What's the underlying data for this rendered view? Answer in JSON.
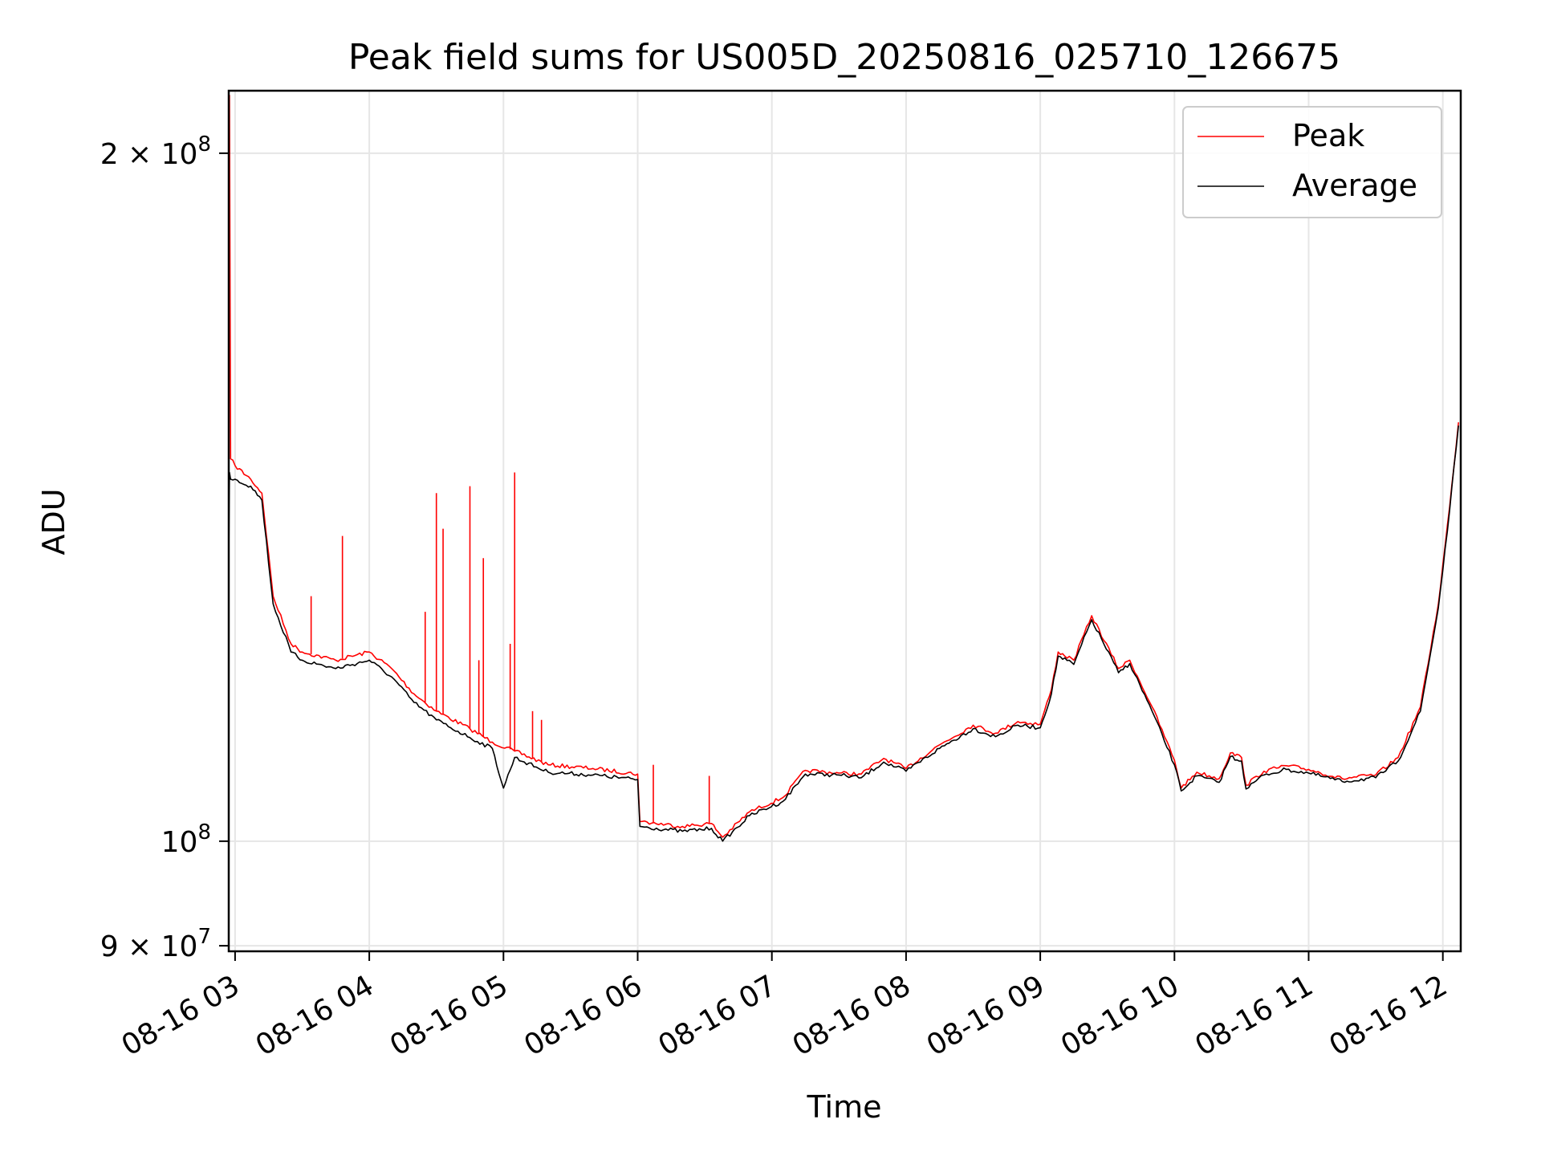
{
  "chart_data": {
    "type": "line",
    "title": "Peak field sums for US005D_20250816_025710_126675",
    "xlabel": "Time",
    "ylabel": "ADU",
    "y_scale": "log",
    "ylim": [
      89500000,
      213000000
    ],
    "xlim": [
      "2025-08-16 02:57:10",
      "2025-08-16 12:08:00"
    ],
    "grid": true,
    "legend_position": "top-right",
    "x_ticks": [
      {
        "t": "2025-08-16 03:00",
        "label": "08-16 03"
      },
      {
        "t": "2025-08-16 04:00",
        "label": "08-16 04"
      },
      {
        "t": "2025-08-16 05:00",
        "label": "08-16 05"
      },
      {
        "t": "2025-08-16 06:00",
        "label": "08-16 06"
      },
      {
        "t": "2025-08-16 07:00",
        "label": "08-16 07"
      },
      {
        "t": "2025-08-16 08:00",
        "label": "08-16 08"
      },
      {
        "t": "2025-08-16 09:00",
        "label": "08-16 09"
      },
      {
        "t": "2025-08-16 10:00",
        "label": "08-16 10"
      },
      {
        "t": "2025-08-16 11:00",
        "label": "08-16 11"
      },
      {
        "t": "2025-08-16 12:00",
        "label": "08-16 12"
      }
    ],
    "y_ticks": [
      {
        "v": 200000000,
        "mantissa": "2",
        "exp": "8"
      },
      {
        "v": 100000000,
        "mantissa": "",
        "exp": "8"
      },
      {
        "v": 90000000,
        "mantissa": "9",
        "exp": "7"
      }
    ],
    "series": [
      {
        "name": "Peak",
        "color": "#ff0000",
        "points": [
          [
            "2025-08-16 02:57:10",
            135000000
          ],
          [
            "2025-08-16 02:57:30",
            212000000
          ],
          [
            "2025-08-16 02:58:00",
            147000000
          ],
          [
            "2025-08-16 03:00",
            146000000
          ],
          [
            "2025-08-16 03:07",
            144000000
          ],
          [
            "2025-08-16 03:12",
            142000000
          ],
          [
            "2025-08-16 03:17",
            128000000
          ],
          [
            "2025-08-16 03:25",
            122000000
          ],
          [
            "2025-08-16 03:30",
            121000000
          ],
          [
            "2025-08-16 03:45",
            120000000
          ],
          [
            "2025-08-16 04:00",
            121000000
          ],
          [
            "2025-08-16 04:10",
            119000000
          ],
          [
            "2025-08-16 04:20",
            116000000
          ],
          [
            "2025-08-16 04:30",
            114000000
          ],
          [
            "2025-08-16 04:45",
            112000000
          ],
          [
            "2025-08-16 04:55",
            110500000
          ],
          [
            "2025-08-16 05:05",
            109500000
          ],
          [
            "2025-08-16 05:20",
            108000000
          ],
          [
            "2025-08-16 05:40",
            107600000
          ],
          [
            "2025-08-16 06:00",
            107000000
          ],
          [
            "2025-08-16 06:01",
            102000000
          ],
          [
            "2025-08-16 06:20",
            101500000
          ],
          [
            "2025-08-16 06:33",
            101800000
          ],
          [
            "2025-08-16 06:38",
            100400000
          ],
          [
            "2025-08-16 06:50",
            103000000
          ],
          [
            "2025-08-16 07:05",
            104500000
          ],
          [
            "2025-08-16 07:15",
            107400000
          ],
          [
            "2025-08-16 07:30",
            107100000
          ],
          [
            "2025-08-16 07:40",
            107000000
          ],
          [
            "2025-08-16 07:50",
            108700000
          ],
          [
            "2025-08-16 08:00",
            107600000
          ],
          [
            "2025-08-16 08:15",
            110200000
          ],
          [
            "2025-08-16 08:30",
            112400000
          ],
          [
            "2025-08-16 08:40",
            111500000
          ],
          [
            "2025-08-16 08:50",
            112800000
          ],
          [
            "2025-08-16 09:00",
            112500000
          ],
          [
            "2025-08-16 09:05",
            116500000
          ],
          [
            "2025-08-16 09:08",
            121000000
          ],
          [
            "2025-08-16 09:15",
            120000000
          ],
          [
            "2025-08-16 09:23",
            125500000
          ],
          [
            "2025-08-16 09:35",
            119000000
          ],
          [
            "2025-08-16 09:40",
            120000000
          ],
          [
            "2025-08-16 09:50",
            114500000
          ],
          [
            "2025-08-16 10:00",
            108500000
          ],
          [
            "2025-08-16 10:03",
            105500000
          ],
          [
            "2025-08-16 10:10",
            107200000
          ],
          [
            "2025-08-16 10:20",
            106500000
          ],
          [
            "2025-08-16 10:25",
            109300000
          ],
          [
            "2025-08-16 10:30",
            108800000
          ],
          [
            "2025-08-16 10:32",
            105800000
          ],
          [
            "2025-08-16 10:40",
            107300000
          ],
          [
            "2025-08-16 10:50",
            107900000
          ],
          [
            "2025-08-16 11:00",
            107500000
          ],
          [
            "2025-08-16 11:15",
            106500000
          ],
          [
            "2025-08-16 11:30",
            106900000
          ],
          [
            "2025-08-16 11:40",
            108800000
          ],
          [
            "2025-08-16 11:50",
            114500000
          ],
          [
            "2025-08-16 11:58",
            127000000
          ],
          [
            "2025-08-16 12:03",
            140000000
          ],
          [
            "2025-08-16 12:07",
            152500000
          ]
        ],
        "spikes": [
          [
            "2025-08-16 03:34",
            128000000
          ],
          [
            "2025-08-16 03:48",
            136000000
          ],
          [
            "2025-08-16 04:25",
            126000000
          ],
          [
            "2025-08-16 04:30",
            142000000
          ],
          [
            "2025-08-16 04:33",
            137000000
          ],
          [
            "2025-08-16 04:45",
            143000000
          ],
          [
            "2025-08-16 04:49",
            120000000
          ],
          [
            "2025-08-16 04:51",
            133000000
          ],
          [
            "2025-08-16 05:03",
            122000000
          ],
          [
            "2025-08-16 05:05",
            145000000
          ],
          [
            "2025-08-16 05:13",
            114000000
          ],
          [
            "2025-08-16 05:17",
            113000000
          ],
          [
            "2025-08-16 06:07",
            108000000
          ],
          [
            "2025-08-16 06:32",
            106800000
          ]
        ]
      },
      {
        "name": "Average",
        "color": "#000000",
        "points": [
          [
            "2025-08-16 02:57:10",
            133000000
          ],
          [
            "2025-08-16 02:57:30",
            145000000
          ],
          [
            "2025-08-16 02:58:00",
            144000000
          ],
          [
            "2025-08-16 03:00",
            144000000
          ],
          [
            "2025-08-16 03:07",
            143000000
          ],
          [
            "2025-08-16 03:12",
            141000000
          ],
          [
            "2025-08-16 03:17",
            127000000
          ],
          [
            "2025-08-16 03:25",
            121000000
          ],
          [
            "2025-08-16 03:30",
            120000000
          ],
          [
            "2025-08-16 03:45",
            119000000
          ],
          [
            "2025-08-16 04:00",
            120000000
          ],
          [
            "2025-08-16 04:10",
            118000000
          ],
          [
            "2025-08-16 04:20",
            115000000
          ],
          [
            "2025-08-16 04:30",
            113000000
          ],
          [
            "2025-08-16 04:45",
            111000000
          ],
          [
            "2025-08-16 04:55",
            109800000
          ],
          [
            "2025-08-16 05:00",
            105500000
          ],
          [
            "2025-08-16 05:05",
            108800000
          ],
          [
            "2025-08-16 05:20",
            107200000
          ],
          [
            "2025-08-16 05:40",
            106900000
          ],
          [
            "2025-08-16 06:00",
            106400000
          ],
          [
            "2025-08-16 06:01",
            101500000
          ],
          [
            "2025-08-16 06:20",
            101000000
          ],
          [
            "2025-08-16 06:33",
            101300000
          ],
          [
            "2025-08-16 06:38",
            100000000
          ],
          [
            "2025-08-16 06:50",
            102600000
          ],
          [
            "2025-08-16 07:05",
            104100000
          ],
          [
            "2025-08-16 07:15",
            107000000
          ],
          [
            "2025-08-16 07:30",
            106900000
          ],
          [
            "2025-08-16 07:40",
            106600000
          ],
          [
            "2025-08-16 07:50",
            108300000
          ],
          [
            "2025-08-16 08:00",
            107300000
          ],
          [
            "2025-08-16 08:15",
            109800000
          ],
          [
            "2025-08-16 08:30",
            112000000
          ],
          [
            "2025-08-16 08:40",
            111100000
          ],
          [
            "2025-08-16 08:50",
            112400000
          ],
          [
            "2025-08-16 09:00",
            112100000
          ],
          [
            "2025-08-16 09:05",
            116000000
          ],
          [
            "2025-08-16 09:08",
            120500000
          ],
          [
            "2025-08-16 09:15",
            119500000
          ],
          [
            "2025-08-16 09:23",
            125000000
          ],
          [
            "2025-08-16 09:35",
            118500000
          ],
          [
            "2025-08-16 09:40",
            119600000
          ],
          [
            "2025-08-16 09:50",
            114000000
          ],
          [
            "2025-08-16 10:00",
            108000000
          ],
          [
            "2025-08-16 10:03",
            105200000
          ],
          [
            "2025-08-16 10:10",
            106800000
          ],
          [
            "2025-08-16 10:20",
            106100000
          ],
          [
            "2025-08-16 10:25",
            108900000
          ],
          [
            "2025-08-16 10:30",
            108400000
          ],
          [
            "2025-08-16 10:32",
            105400000
          ],
          [
            "2025-08-16 10:40",
            106900000
          ],
          [
            "2025-08-16 10:50",
            107500000
          ],
          [
            "2025-08-16 11:00",
            107100000
          ],
          [
            "2025-08-16 11:15",
            106200000
          ],
          [
            "2025-08-16 11:30",
            106600000
          ],
          [
            "2025-08-16 11:40",
            108400000
          ],
          [
            "2025-08-16 11:50",
            114000000
          ],
          [
            "2025-08-16 11:58",
            126500000
          ],
          [
            "2025-08-16 12:03",
            139500000
          ],
          [
            "2025-08-16 12:07",
            152000000
          ]
        ]
      }
    ]
  }
}
